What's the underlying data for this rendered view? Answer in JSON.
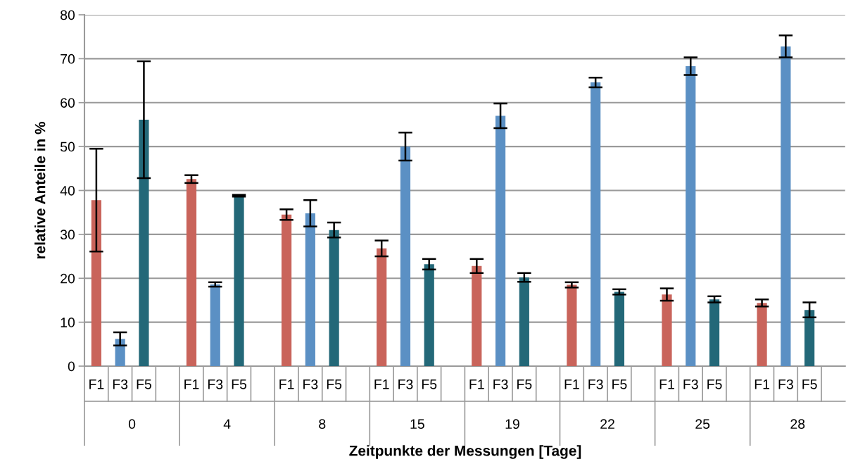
{
  "chart_data": {
    "type": "bar",
    "xlabel": "Zeitpunkte der Messungen [Tage]",
    "ylabel": "relative Anteile in %",
    "categories": [
      "0",
      "4",
      "8",
      "15",
      "19",
      "22",
      "25",
      "28"
    ],
    "series": [
      {
        "name": "F1",
        "color": "#c9645b",
        "values": [
          37.8,
          42.6,
          34.5,
          26.8,
          22.8,
          18.5,
          16.3,
          14.4
        ],
        "errors": [
          11.7,
          0.9,
          1.2,
          1.8,
          1.6,
          0.6,
          1.4,
          0.8
        ]
      },
      {
        "name": "F3",
        "color": "#5b90c4",
        "values": [
          6.2,
          18.6,
          34.8,
          50.0,
          57.0,
          64.6,
          68.3,
          72.8
        ],
        "errors": [
          1.5,
          0.5,
          3.0,
          3.2,
          2.8,
          1.1,
          2.0,
          2.5
        ]
      },
      {
        "name": "F5",
        "color": "#236878",
        "values": [
          56.1,
          38.8,
          31.0,
          23.2,
          20.2,
          16.9,
          15.2,
          12.8
        ],
        "errors": [
          13.3,
          0.2,
          1.7,
          1.2,
          1.0,
          0.6,
          0.7,
          1.7
        ]
      }
    ],
    "ylim": [
      0,
      80
    ],
    "yticks": [
      0,
      10,
      20,
      30,
      40,
      50,
      60,
      70,
      80
    ],
    "grid": "y",
    "legend": false
  }
}
